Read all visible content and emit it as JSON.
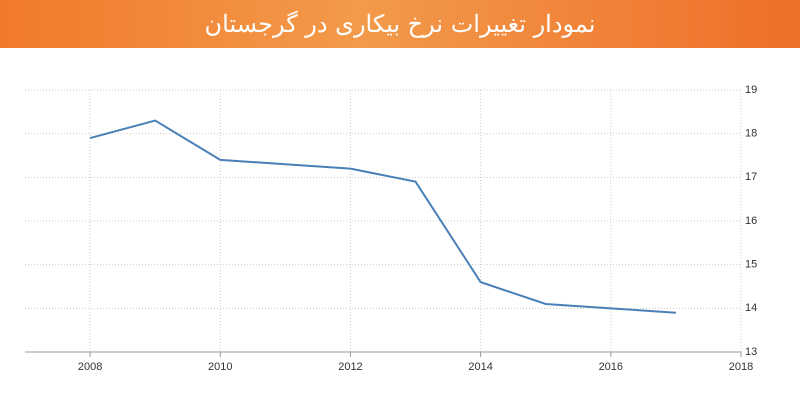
{
  "chart_data": {
    "type": "line",
    "title": "نمودار تغییرات نرخ بیکاری در گرجستان",
    "x": [
      2008,
      2009,
      2010,
      2011,
      2012,
      2013,
      2014,
      2015,
      2016,
      2017
    ],
    "series": [
      {
        "color": "#4a80b8",
        "values": [
          17.9,
          18.3,
          17.4,
          17.3,
          17.2,
          16.9,
          14.6,
          14.1,
          14.0,
          13.9
        ]
      }
    ],
    "xlim": [
      2007,
      2018
    ],
    "xticks": [
      2008,
      2010,
      2012,
      2014,
      2016,
      2018
    ],
    "ylim": [
      13,
      19
    ],
    "yticks": [
      13,
      14,
      15,
      16,
      17,
      18,
      19
    ],
    "grid": true
  }
}
